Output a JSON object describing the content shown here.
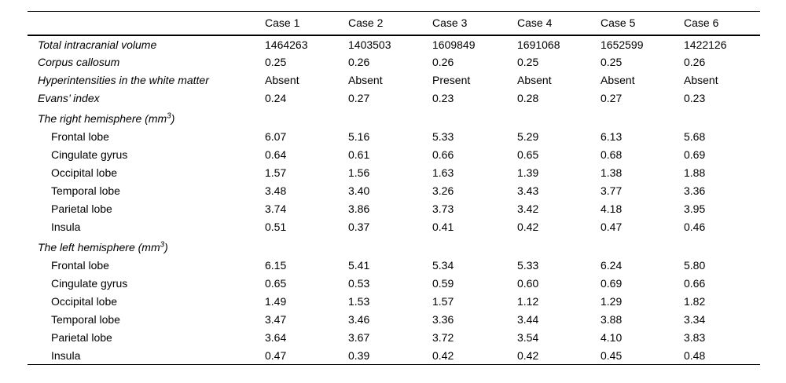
{
  "colors": {
    "background": "#ffffff",
    "text": "#000000",
    "rule": "#000000"
  },
  "table": {
    "columns": [
      "Case 1",
      "Case 2",
      "Case 3",
      "Case 4",
      "Case 5",
      "Case 6"
    ],
    "rows": [
      {
        "type": "main",
        "label": "Total intracranial volume",
        "values": [
          "1464263",
          "1403503",
          "1609849",
          "1691068",
          "1652599",
          "1422126"
        ]
      },
      {
        "type": "main",
        "label": "Corpus callosum",
        "values": [
          "0.25",
          "0.26",
          "0.26",
          "0.25",
          "0.25",
          "0.26"
        ]
      },
      {
        "type": "main",
        "label": "Hyperintensities in the white matter",
        "values": [
          "Absent",
          "Absent",
          "Present",
          "Absent",
          "Absent",
          "Absent"
        ]
      },
      {
        "type": "main",
        "label": "Evans’ index",
        "values": [
          "0.24",
          "0.27",
          "0.23",
          "0.28",
          "0.27",
          "0.23"
        ]
      },
      {
        "type": "section",
        "label": "The right hemisphere (mm³)",
        "values": []
      },
      {
        "type": "sub",
        "label": "Frontal lobe",
        "values": [
          "6.07",
          "5.16",
          "5.33",
          "5.29",
          "6.13",
          "5.68"
        ]
      },
      {
        "type": "sub",
        "label": "Cingulate gyrus",
        "values": [
          "0.64",
          "0.61",
          "0.66",
          "0.65",
          "0.68",
          "0.69"
        ]
      },
      {
        "type": "sub",
        "label": "Occipital lobe",
        "values": [
          "1.57",
          "1.56",
          "1.63",
          "1.39",
          "1.38",
          "1.88"
        ]
      },
      {
        "type": "sub",
        "label": "Temporal lobe",
        "values": [
          "3.48",
          "3.40",
          "3.26",
          "3.43",
          "3.77",
          "3.36"
        ]
      },
      {
        "type": "sub",
        "label": "Parietal lobe",
        "values": [
          "3.74",
          "3.86",
          "3.73",
          "3.42",
          "4.18",
          "3.95"
        ]
      },
      {
        "type": "sub",
        "label": "Insula",
        "values": [
          "0.51",
          "0.37",
          "0.41",
          "0.42",
          "0.47",
          "0.46"
        ]
      },
      {
        "type": "section",
        "label": "The left hemisphere (mm³)",
        "values": []
      },
      {
        "type": "sub",
        "label": "Frontal lobe",
        "values": [
          "6.15",
          "5.41",
          "5.34",
          "5.33",
          "6.24",
          "5.80"
        ]
      },
      {
        "type": "sub",
        "label": "Cingulate gyrus",
        "values": [
          "0.65",
          "0.53",
          "0.59",
          "0.60",
          "0.69",
          "0.66"
        ]
      },
      {
        "type": "sub",
        "label": "Occipital lobe",
        "values": [
          "1.49",
          "1.53",
          "1.57",
          "1.12",
          "1.29",
          "1.82"
        ]
      },
      {
        "type": "sub",
        "label": "Temporal lobe",
        "values": [
          "3.47",
          "3.46",
          "3.36",
          "3.44",
          "3.88",
          "3.34"
        ]
      },
      {
        "type": "sub",
        "label": "Parietal lobe",
        "values": [
          "3.64",
          "3.67",
          "3.72",
          "3.54",
          "4.10",
          "3.83"
        ]
      },
      {
        "type": "sub",
        "label": "Insula",
        "values": [
          "0.47",
          "0.39",
          "0.42",
          "0.42",
          "0.45",
          "0.48"
        ]
      }
    ]
  }
}
